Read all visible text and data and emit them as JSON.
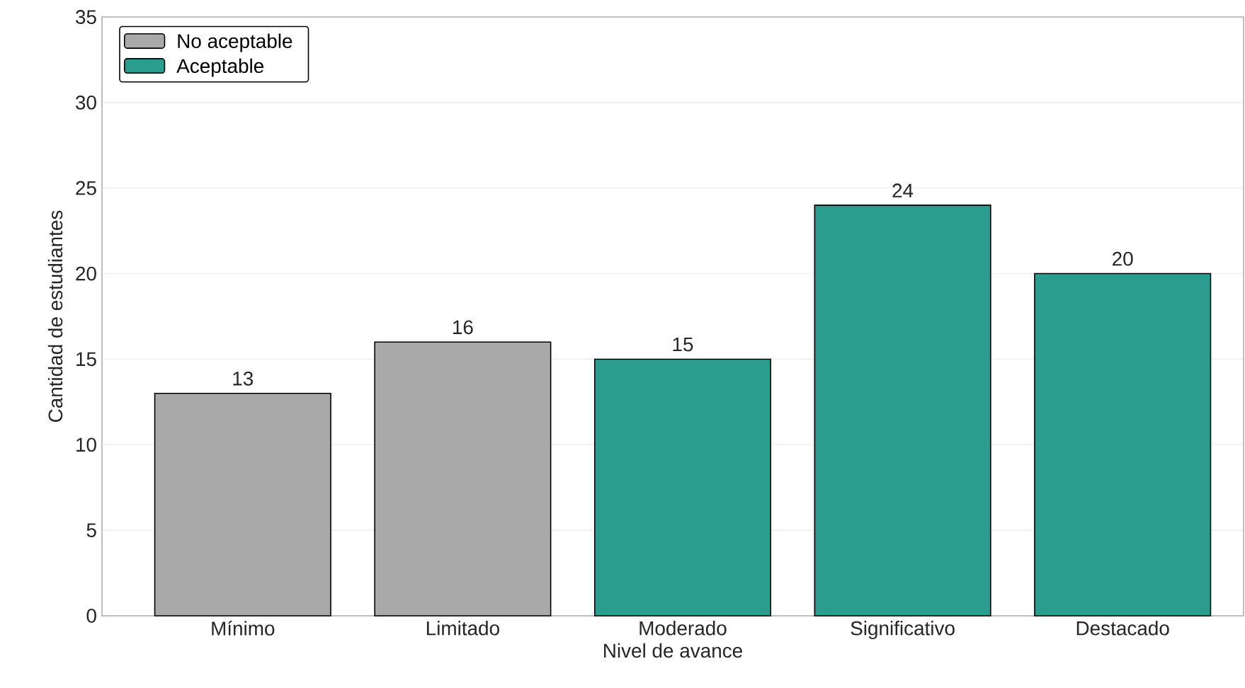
{
  "chart_data": {
    "type": "bar",
    "xlabel": "Nivel de avance",
    "ylabel": "Cantidad de estudiantes",
    "categories": [
      "Mínimo",
      "Limitado",
      "Moderado",
      "Significativo",
      "Destacado"
    ],
    "series": [
      {
        "name": "No aceptable",
        "color": "#a9a9a9",
        "values": [
          13,
          16,
          null,
          null,
          null
        ]
      },
      {
        "name": "Aceptable",
        "color": "#2a9d8f",
        "values": [
          null,
          null,
          15,
          24,
          20
        ]
      }
    ],
    "data_labels": true,
    "ylim": [
      0,
      35
    ],
    "yticks": [
      0,
      5,
      10,
      15,
      20,
      25,
      30,
      35
    ],
    "grid": "y",
    "legend": "top left"
  }
}
